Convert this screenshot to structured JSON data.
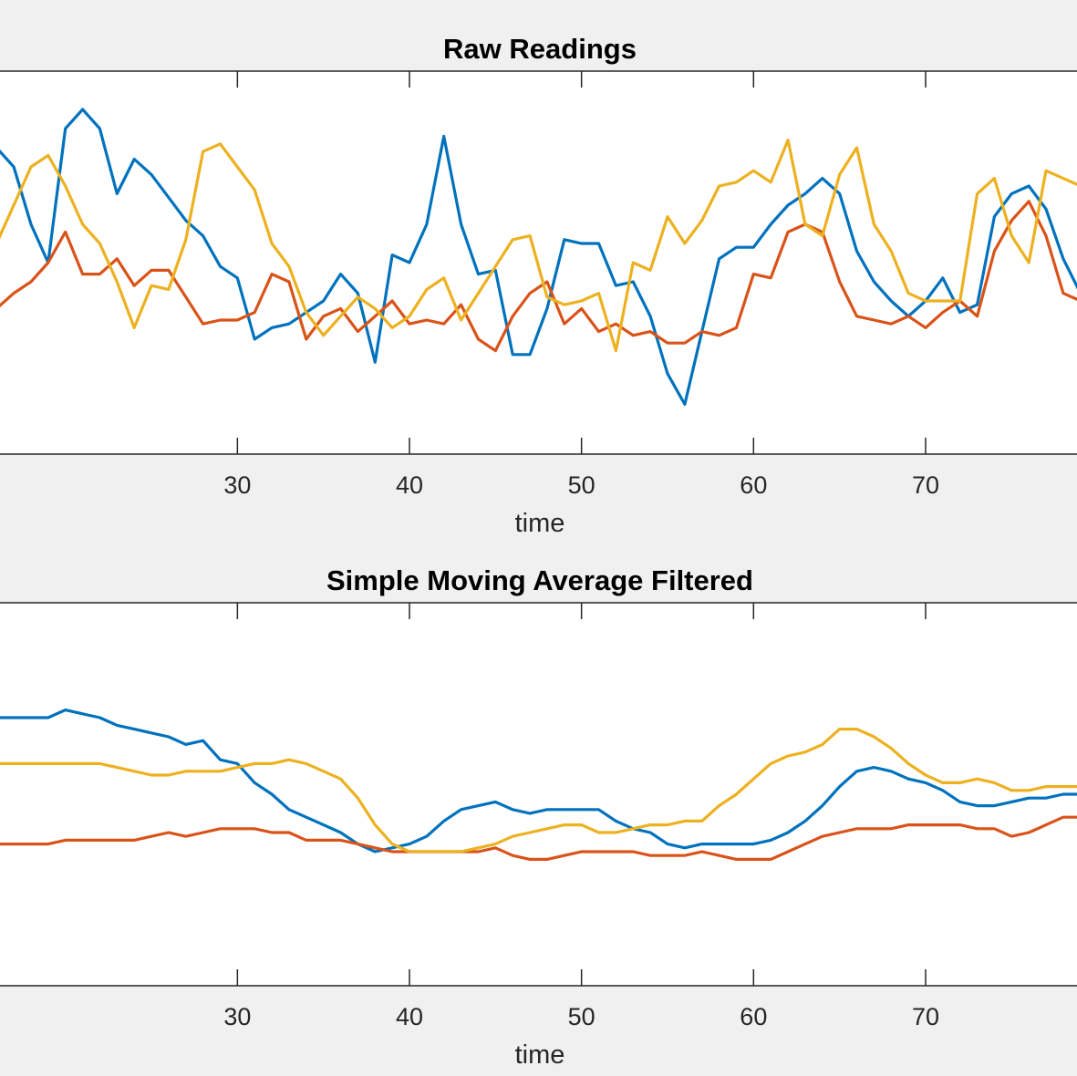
{
  "chart_data": [
    {
      "type": "line",
      "title": "Raw Readings",
      "xlabel": "time",
      "ylabel": "",
      "xlim": [
        16.2,
        78.8
      ],
      "ylim": [
        0,
        100
      ],
      "xticks": [
        30,
        40,
        50,
        60,
        70
      ],
      "grid": false,
      "legend": "none",
      "series": [
        {
          "color": "#0072BD",
          "x": [
            16,
            17,
            18,
            19,
            20,
            21,
            22,
            23,
            24,
            25,
            26,
            27,
            28,
            29,
            30,
            31,
            32,
            33,
            34,
            35,
            36,
            37,
            38,
            39,
            40,
            41,
            42,
            43,
            44,
            45,
            46,
            47,
            48,
            49,
            50,
            51,
            52,
            53,
            54,
            55,
            56,
            57,
            58,
            59,
            60,
            61,
            62,
            63,
            64,
            65,
            66,
            67,
            68,
            69,
            70,
            71,
            72,
            73,
            74,
            75,
            76,
            77,
            78,
            79
          ],
          "y": [
            80,
            75,
            60,
            50,
            85,
            90,
            85,
            68,
            77,
            73,
            67,
            61,
            57,
            49,
            46,
            30,
            33,
            34,
            37,
            40,
            47,
            42,
            24,
            52,
            50,
            60,
            83,
            60,
            47,
            48,
            26,
            26,
            38,
            56,
            55,
            55,
            44,
            45,
            36,
            21,
            13,
            32,
            51,
            54,
            54,
            60,
            65,
            68,
            72,
            68,
            53,
            45,
            40,
            36,
            40,
            46,
            37,
            39,
            62,
            68,
            70,
            64,
            51,
            42
          ],
          "name": ""
        },
        {
          "color": "#D95319",
          "x": [
            16,
            17,
            18,
            19,
            20,
            21,
            22,
            23,
            24,
            25,
            26,
            27,
            28,
            29,
            30,
            31,
            32,
            33,
            34,
            35,
            36,
            37,
            38,
            39,
            40,
            41,
            42,
            43,
            44,
            45,
            46,
            47,
            48,
            49,
            50,
            51,
            52,
            53,
            54,
            55,
            56,
            57,
            58,
            59,
            60,
            61,
            62,
            63,
            64,
            65,
            66,
            67,
            68,
            69,
            70,
            71,
            72,
            73,
            74,
            75,
            76,
            77,
            78,
            79
          ],
          "y": [
            38,
            42,
            45,
            50,
            58,
            47,
            47,
            51,
            44,
            48,
            48,
            41,
            34,
            35,
            35,
            37,
            47,
            45,
            30,
            36,
            38,
            32,
            36,
            40,
            34,
            35,
            34,
            39,
            30,
            27,
            36,
            42,
            45,
            34,
            38,
            32,
            34,
            31,
            32,
            29,
            29,
            32,
            31,
            33,
            47,
            46,
            58,
            60,
            58,
            45,
            36,
            35,
            34,
            36,
            33,
            37,
            40,
            36,
            53,
            61,
            66,
            57,
            42,
            40
          ],
          "name": ""
        },
        {
          "color": "#EDB120",
          "x": [
            16,
            17,
            18,
            19,
            20,
            21,
            22,
            23,
            24,
            25,
            26,
            27,
            28,
            29,
            30,
            31,
            32,
            33,
            34,
            35,
            36,
            37,
            38,
            39,
            40,
            41,
            42,
            43,
            44,
            45,
            46,
            47,
            48,
            49,
            50,
            51,
            52,
            53,
            54,
            55,
            56,
            57,
            58,
            59,
            60,
            61,
            62,
            63,
            64,
            65,
            66,
            67,
            68,
            69,
            70,
            71,
            72,
            73,
            74,
            75,
            76,
            77,
            78,
            79
          ],
          "y": [
            55,
            65,
            75,
            78,
            70,
            60,
            55,
            45,
            33,
            44,
            43,
            56,
            79,
            81,
            75,
            69,
            55,
            49,
            37,
            31,
            36,
            41,
            38,
            33,
            36,
            43,
            46,
            35,
            42,
            49,
            56,
            57,
            41,
            39,
            40,
            42,
            27,
            50,
            48,
            62,
            55,
            61,
            70,
            71,
            74,
            71,
            82,
            60,
            57,
            73,
            80,
            60,
            53,
            42,
            40,
            40,
            40,
            68,
            72,
            57,
            50,
            74,
            72,
            70
          ],
          "name": ""
        }
      ]
    },
    {
      "type": "line",
      "title": "Simple Moving Average Filtered",
      "xlabel": "time",
      "ylabel": "",
      "xlim": [
        16.2,
        78.8
      ],
      "ylim": [
        0,
        100
      ],
      "xticks": [
        30,
        40,
        50,
        60,
        70
      ],
      "grid": false,
      "legend": "none",
      "series": [
        {
          "color": "#0072BD",
          "x": [
            16,
            17,
            18,
            19,
            20,
            21,
            22,
            23,
            24,
            25,
            26,
            27,
            28,
            29,
            30,
            31,
            32,
            33,
            34,
            35,
            36,
            37,
            38,
            39,
            40,
            41,
            42,
            43,
            44,
            45,
            46,
            47,
            48,
            49,
            50,
            51,
            52,
            53,
            54,
            55,
            56,
            57,
            58,
            59,
            60,
            61,
            62,
            63,
            64,
            65,
            66,
            67,
            68,
            69,
            70,
            71,
            72,
            73,
            74,
            75,
            76,
            77,
            78,
            79
          ],
          "y": [
            70,
            70,
            70,
            70,
            72,
            71,
            70,
            68,
            67,
            66,
            65,
            63,
            64,
            59,
            58,
            53,
            50,
            46,
            44,
            42,
            40,
            37,
            35,
            36,
            37,
            39,
            43,
            46,
            47,
            48,
            46,
            45,
            46,
            46,
            46,
            46,
            43,
            41,
            40,
            37,
            36,
            37,
            37,
            37,
            37,
            38,
            40,
            43,
            47,
            52,
            56,
            57,
            56,
            54,
            53,
            51,
            48,
            47,
            47,
            48,
            49,
            49,
            50,
            50
          ],
          "name": ""
        },
        {
          "color": "#D95319",
          "x": [
            16,
            17,
            18,
            19,
            20,
            21,
            22,
            23,
            24,
            25,
            26,
            27,
            28,
            29,
            30,
            31,
            32,
            33,
            34,
            35,
            36,
            37,
            38,
            39,
            40,
            41,
            42,
            43,
            44,
            45,
            46,
            47,
            48,
            49,
            50,
            51,
            52,
            53,
            54,
            55,
            56,
            57,
            58,
            59,
            60,
            61,
            62,
            63,
            64,
            65,
            66,
            67,
            68,
            69,
            70,
            71,
            72,
            73,
            74,
            75,
            76,
            77,
            78,
            79
          ],
          "y": [
            37,
            37,
            37,
            37,
            38,
            38,
            38,
            38,
            38,
            39,
            40,
            39,
            40,
            41,
            41,
            41,
            40,
            40,
            38,
            38,
            38,
            37,
            36,
            35,
            35,
            35,
            35,
            35,
            35,
            36,
            34,
            33,
            33,
            34,
            35,
            35,
            35,
            35,
            34,
            34,
            34,
            35,
            34,
            33,
            33,
            33,
            35,
            37,
            39,
            40,
            41,
            41,
            41,
            42,
            42,
            42,
            42,
            41,
            41,
            39,
            40,
            42,
            44,
            44
          ],
          "name": ""
        },
        {
          "color": "#EDB120",
          "x": [
            16,
            17,
            18,
            19,
            20,
            21,
            22,
            23,
            24,
            25,
            26,
            27,
            28,
            29,
            30,
            31,
            32,
            33,
            34,
            35,
            36,
            37,
            38,
            39,
            40,
            41,
            42,
            43,
            44,
            45,
            46,
            47,
            48,
            49,
            50,
            51,
            52,
            53,
            54,
            55,
            56,
            57,
            58,
            59,
            60,
            61,
            62,
            63,
            64,
            65,
            66,
            67,
            68,
            69,
            70,
            71,
            72,
            73,
            74,
            75,
            76,
            77,
            78,
            79
          ],
          "y": [
            58,
            58,
            58,
            58,
            58,
            58,
            58,
            57,
            56,
            55,
            55,
            56,
            56,
            56,
            57,
            58,
            58,
            59,
            58,
            56,
            54,
            49,
            42,
            37,
            35,
            35,
            35,
            35,
            36,
            37,
            39,
            40,
            41,
            42,
            42,
            40,
            40,
            41,
            42,
            42,
            43,
            43,
            47,
            50,
            54,
            58,
            60,
            61,
            63,
            67,
            67,
            65,
            62,
            58,
            55,
            53,
            53,
            54,
            53,
            51,
            51,
            52,
            52,
            52
          ],
          "name": ""
        }
      ]
    }
  ]
}
